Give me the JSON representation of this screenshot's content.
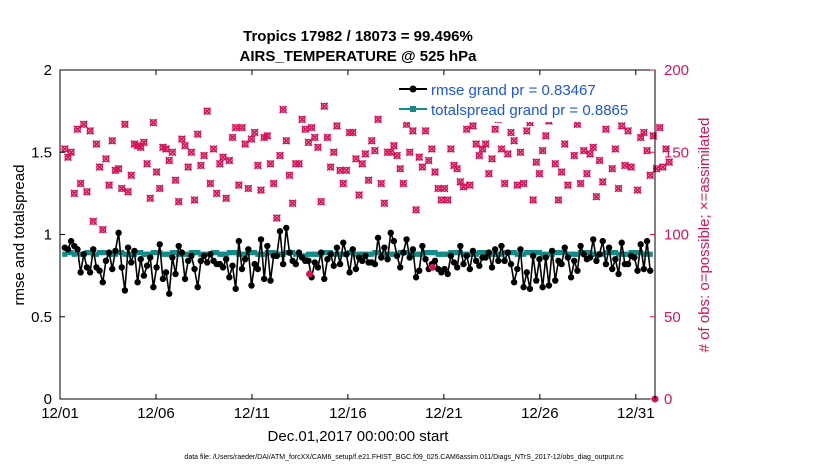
{
  "chart_data": {
    "type": "line",
    "title": "Tropics 17982 / 18073 = 99.496%",
    "subtitle": "AIRS_TEMPERATURE @ 525 hPa",
    "xlabel": "Dec.01,2017 00:00:00 start",
    "ylabel": "rmse and totalspread",
    "y2label": "# of obs: o=possible; ×=assimilated",
    "xlim": [
      0,
      31
    ],
    "ylim": [
      0,
      2
    ],
    "y2lim": [
      0,
      200
    ],
    "x_ticks": [
      0,
      5,
      10,
      15,
      20,
      25,
      30
    ],
    "x_tick_labels": [
      "12/01",
      "12/06",
      "12/11",
      "12/16",
      "12/21",
      "12/26",
      "12/31"
    ],
    "y_ticks": [
      0,
      0.5,
      1,
      1.5,
      2
    ],
    "y_tick_labels": [
      "0",
      "0.5",
      "1",
      "1.5",
      "2"
    ],
    "y2_ticks": [
      0,
      50,
      100,
      150,
      200
    ],
    "y2_tick_labels": [
      "0",
      "50",
      "100",
      "150",
      "200"
    ],
    "legend_position": "top-right",
    "colors": {
      "rmse": "#000000",
      "spread": "#138b87",
      "obs": "#d6145a",
      "legend_text": "#1a55e6"
    },
    "series": [
      {
        "name": "rmse grand pr = 0.83467",
        "key": "rmse",
        "values": [
          0.92,
          0.91,
          0.96,
          0.93,
          0.91,
          0.77,
          0.88,
          0.8,
          0.77,
          0.91,
          0.8,
          0.78,
          0.71,
          0.84,
          0.89,
          0.79,
          0.9,
          1.01,
          0.8,
          0.66,
          0.92,
          0.83,
          0.9,
          0.71,
          0.85,
          0.75,
          0.81,
          0.86,
          0.68,
          0.8,
          0.94,
          0.73,
          0.77,
          0.64,
          0.86,
          0.76,
          0.93,
          0.89,
          0.73,
          0.84,
          0.87,
          0.79,
          0.68,
          0.84,
          0.87,
          0.83,
          0.88,
          0.84,
          0.82,
          0.82,
          0.8,
          0.85,
          0.74,
          0.81,
          0.67,
          0.96,
          0.79,
          0.85,
          0.91,
          0.69,
          0.82,
          0.79,
          0.97,
          0.73,
          0.93,
          0.72,
          0.87,
          0.87,
          1.02,
          0.82,
          1.04,
          0.89,
          0.84,
          0.82,
          0.89,
          0.86,
          0.84,
          0.84,
          0.74,
          0.83,
          0.8,
          0.89,
          0.73,
          0.85,
          0.88,
          0.81,
          0.92,
          0.82,
          0.95,
          0.88,
          0.77,
          0.91,
          0.79,
          0.86,
          0.84,
          0.87,
          0.83,
          0.83,
          0.82,
          0.98,
          0.86,
          0.92,
          0.85,
          1.01,
          0.96,
          0.87,
          0.8,
          0.89,
          0.97,
          0.86,
          0.91,
          0.74,
          0.78,
          0.93,
          0.85,
          0.79,
          0.82,
          0.84,
          0.79,
          0.77,
          0.79,
          0.76,
          0.87,
          0.83,
          0.8,
          0.93,
          0.82,
          0.87,
          0.79,
          0.9,
          0.84,
          0.81,
          0.86,
          0.86,
          0.89,
          0.8,
          0.91,
          0.84,
          0.93,
          0.84,
          0.89,
          0.82,
          0.71,
          0.79,
          0.91,
          0.68,
          0.77,
          0.67,
          0.87,
          0.72,
          0.85,
          0.68,
          0.86,
          0.69,
          0.9,
          0.72,
          0.84,
          0.82,
          0.92,
          0.86,
          0.74,
          0.84,
          0.78,
          0.93,
          0.88,
          0.85,
          0.86,
          0.97,
          0.84,
          0.88,
          0.96,
          0.82,
          0.92,
          0.79,
          0.85,
          0.76,
          0.95,
          0.82,
          0.82,
          0.87,
          0.86,
          0.78,
          0.94,
          0.79,
          0.96,
          0.78
        ]
      },
      {
        "name": "totalspread grand pr = 0.8865",
        "key": "spread",
        "values": [
          0.88,
          0.89,
          0.89,
          0.88,
          0.89,
          0.88,
          0.88,
          0.89,
          0.89,
          0.88,
          0.88,
          0.89,
          0.89,
          0.89,
          0.88,
          0.88,
          0.88,
          0.89,
          0.89,
          0.88,
          0.88,
          0.88,
          0.88,
          0.89,
          0.89,
          0.88,
          0.88,
          0.88,
          0.89,
          0.89,
          0.89,
          0.88,
          0.88,
          0.88,
          0.89,
          0.89,
          0.88,
          0.88,
          0.88,
          0.88,
          0.89,
          0.89,
          0.89,
          0.88,
          0.88,
          0.88,
          0.88,
          0.89,
          0.89,
          0.88,
          0.88,
          0.88,
          0.89,
          0.89,
          0.89,
          0.88,
          0.88,
          0.88,
          0.89,
          0.89,
          0.89,
          0.88,
          0.88,
          0.88,
          0.89,
          0.89,
          0.89,
          0.88,
          0.88,
          0.88,
          0.89,
          0.89,
          0.89,
          0.88,
          0.88,
          0.87,
          0.87,
          0.88,
          0.88,
          0.88,
          0.88,
          0.88,
          0.89,
          0.89,
          0.89,
          0.88,
          0.88,
          0.88,
          0.88,
          0.88,
          0.89,
          0.89,
          0.88,
          0.88,
          0.88,
          0.88,
          0.88,
          0.88,
          0.89,
          0.89,
          0.88,
          0.88,
          0.88,
          0.88,
          0.88,
          0.88,
          0.89,
          0.89,
          0.89,
          0.88,
          0.88,
          0.88,
          0.88,
          0.88,
          0.89,
          0.89,
          0.89,
          0.89,
          0.88,
          0.88,
          0.88,
          0.88,
          0.89,
          0.89,
          0.89,
          0.89,
          0.88,
          0.88,
          0.88,
          0.88,
          0.88,
          0.89,
          0.89,
          0.89,
          0.89,
          0.88,
          0.88,
          0.88,
          0.88,
          0.89,
          0.89,
          0.89,
          0.89,
          0.88,
          0.88,
          0.88,
          0.89,
          0.89,
          0.89,
          0.89,
          0.89,
          0.88,
          0.88,
          0.88,
          0.88,
          0.89,
          0.89,
          0.89,
          0.89,
          0.88,
          0.88,
          0.88,
          0.88,
          0.89,
          0.89,
          0.89,
          0.89,
          0.88,
          0.88,
          0.88,
          0.88,
          0.89,
          0.89,
          0.89,
          0.89,
          0.88,
          0.88,
          0.88,
          0.88,
          0.89,
          0.89,
          0.89,
          0.89,
          0.88,
          0.88,
          0.88
        ]
      },
      {
        "name": "obs_possible",
        "key": "obs",
        "axis": "right",
        "values": [
          152,
          147,
          150,
          125,
          164,
          131,
          167,
          126,
          163,
          108,
          155,
          141,
          103,
          146,
          130,
          157,
          139,
          140,
          128,
          167,
          126,
          136,
          155,
          154,
          153,
          156,
          143,
          122,
          168,
          138,
          128,
          153,
          152,
          145,
          150,
          133,
          120,
          158,
          154,
          141,
          150,
          121,
          161,
          142,
          148,
          175,
          131,
          152,
          125,
          143,
          147,
          122,
          145,
          159,
          165,
          130,
          165,
          155,
          128,
          158,
          162,
          142,
          127,
          159,
          160,
          143,
          131,
          110,
          148,
          176,
          157,
          136,
          119,
          143,
          143,
          170,
          164,
          156,
          165,
          159,
          153,
          120,
          178,
          159,
          141,
          150,
          166,
          139,
          131,
          139,
          162,
          162,
          146,
          124,
          143,
          149,
          133,
          157,
          151,
          170,
          131,
          119,
          150,
          150,
          154,
          148,
          140,
          131,
          167,
          150,
          163,
          115,
          147,
          141,
          163,
          145,
          152,
          138,
          128,
          121,
          128,
          121,
          152,
          142,
          140,
          132,
          129,
          164,
          130,
          166,
          155,
          148,
          152,
          155,
          137,
          146,
          164,
          170,
          152,
          131,
          149,
          162,
          157,
          130,
          150,
          131,
          163,
          168,
          121,
          144,
          137,
          151,
          160,
          169,
          172,
          143,
          121,
          138,
          155,
          130,
          171,
          148,
          167,
          131,
          151,
          137,
          149,
          153,
          123,
          145,
          132,
          164,
          176,
          140,
          152,
          128,
          166,
          142,
          163,
          141,
          191,
          127,
          159,
          162,
          151,
          136,
          160,
          140,
          165,
          141,
          152,
          144
        ]
      },
      {
        "name": "obs_assimilated",
        "key": "obs_assim",
        "axis": "right",
        "values": [
          152,
          147,
          150,
          125,
          164,
          131,
          167,
          126,
          163,
          108,
          155,
          141,
          103,
          146,
          130,
          157,
          139,
          140,
          128,
          167,
          126,
          136,
          155,
          154,
          153,
          156,
          143,
          122,
          168,
          138,
          128,
          153,
          152,
          145,
          150,
          133,
          120,
          158,
          154,
          141,
          150,
          121,
          161,
          142,
          148,
          175,
          131,
          152,
          125,
          143,
          147,
          122,
          145,
          159,
          165,
          130,
          165,
          155,
          128,
          158,
          162,
          142,
          127,
          159,
          160,
          143,
          131,
          110,
          148,
          176,
          157,
          136,
          119,
          143,
          143,
          170,
          164,
          156,
          165,
          159,
          153,
          120,
          178,
          159,
          141,
          150,
          166,
          139,
          131,
          139,
          162,
          162,
          146,
          124,
          143,
          149,
          133,
          157,
          151,
          170,
          131,
          119,
          150,
          150,
          154,
          148,
          140,
          131,
          167,
          150,
          163,
          115,
          147,
          141,
          163,
          145,
          152,
          138,
          128,
          121,
          128,
          121,
          152,
          142,
          140,
          132,
          129,
          164,
          130,
          166,
          155,
          148,
          152,
          155,
          137,
          146,
          164,
          170,
          152,
          131,
          149,
          162,
          157,
          130,
          150,
          131,
          163,
          168,
          121,
          144,
          137,
          151,
          160,
          169,
          172,
          143,
          121,
          138,
          155,
          130,
          171,
          148,
          167,
          131,
          151,
          137,
          149,
          153,
          123,
          145,
          132,
          164,
          176,
          140,
          152,
          128,
          166,
          142,
          163,
          141,
          191,
          127,
          159,
          162,
          151,
          136,
          160,
          140,
          165,
          141,
          152,
          144
        ]
      },
      {
        "name": "obs_extra",
        "key": "obs_extra",
        "axis": "right",
        "x": [
          13.0,
          19.4,
          31.0
        ],
        "values": [
          76,
          80,
          0
        ]
      }
    ],
    "footnote": "data file: /Users/raeder/DAI/ATM_forcXX/CAM6_setup/f.e21.FHIST_BGC.f09_025.CAM6assim.011/Diags_NTrS_2017-12/obs_diag_output.nc"
  }
}
